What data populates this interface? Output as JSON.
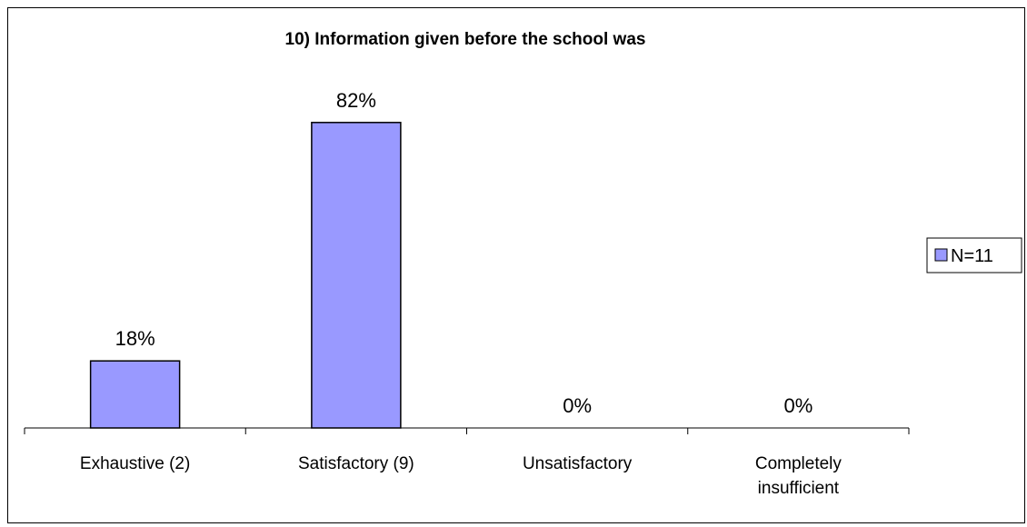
{
  "chart_data": {
    "type": "bar",
    "title": "10) Information given before the school was",
    "categories": [
      "Exhaustive (2)",
      "Satisfactory (9)",
      "Unsatisfactory",
      "Completely insufficient"
    ],
    "series": [
      {
        "name": "N=11",
        "values": [
          18,
          82,
          0,
          0
        ],
        "color": "#9999ff"
      }
    ],
    "data_labels": [
      "18%",
      "82%",
      "0%",
      "0%"
    ],
    "ylim": [
      0,
      100
    ],
    "grid": false,
    "legend_position": "right"
  }
}
